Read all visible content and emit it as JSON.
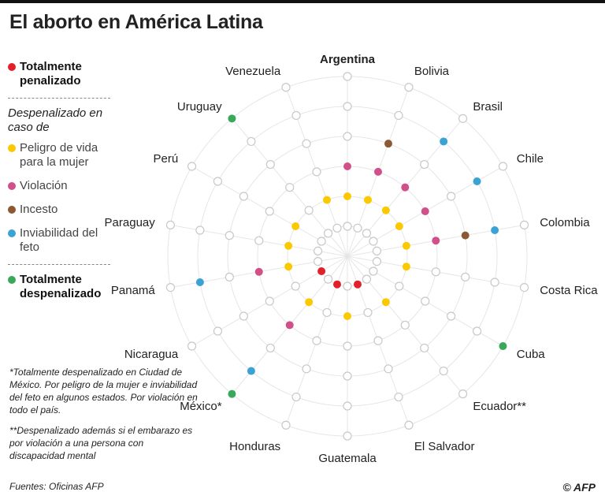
{
  "title": "El aborto en América Latina",
  "legend": {
    "penalizado": "Totalmente penalizado",
    "subtitle": "Despenalizado en caso de",
    "peligro": "Peligro de vida para la mujer",
    "violacion": "Violación",
    "incesto": "Incesto",
    "inviabilidad": "Inviabilidad del feto",
    "despenalizado": "Totalmente despenalizado"
  },
  "notes": [
    "*Totalmente despenalizado en Ciudad de México. Por peligro de la mujer e inviabilidad del feto en algunos estados. Por violación en todo el país.",
    "**Despenalizado además si el embarazo es por violación a una persona con discapacidad mental"
  ],
  "source": "Fuentes: Oficinas AFP",
  "logo": "© AFP",
  "colors": {
    "penalizado": "#e3202a",
    "peligro": "#fcc800",
    "violacion": "#d1508a",
    "incesto": "#8b5a35",
    "inviabilidad": "#3ba3d3",
    "despenalizado": "#3aa85a",
    "empty": "#c8c8c8"
  },
  "chart_data": {
    "type": "radial",
    "rings": [
      "penalizado",
      "peligro",
      "violacion",
      "incesto",
      "inviabilidad",
      "despenalizado"
    ],
    "countries": [
      {
        "name": "Argentina",
        "status": [
          "peligro",
          "violacion"
        ]
      },
      {
        "name": "Bolivia",
        "status": [
          "peligro",
          "violacion",
          "incesto"
        ]
      },
      {
        "name": "Brasil",
        "status": [
          "peligro",
          "violacion",
          "inviabilidad"
        ]
      },
      {
        "name": "Chile",
        "status": [
          "peligro",
          "violacion",
          "inviabilidad"
        ]
      },
      {
        "name": "Colombia",
        "status": [
          "peligro",
          "violacion",
          "incesto",
          "inviabilidad"
        ]
      },
      {
        "name": "Costa Rica",
        "status": [
          "peligro"
        ]
      },
      {
        "name": "Cuba",
        "status": [
          "despenalizado"
        ]
      },
      {
        "name": "Ecuador**",
        "status": [
          "peligro"
        ]
      },
      {
        "name": "El Salvador",
        "status": [
          "penalizado"
        ]
      },
      {
        "name": "Guatemala",
        "status": [
          "peligro"
        ]
      },
      {
        "name": "Honduras",
        "status": [
          "penalizado"
        ]
      },
      {
        "name": "México*",
        "status": [
          "peligro",
          "violacion",
          "inviabilidad",
          "despenalizado"
        ]
      },
      {
        "name": "Nicaragua",
        "status": [
          "penalizado"
        ]
      },
      {
        "name": "Panamá",
        "status": [
          "peligro",
          "violacion",
          "inviabilidad"
        ]
      },
      {
        "name": "Paraguay",
        "status": [
          "peligro"
        ]
      },
      {
        "name": "Perú",
        "status": [
          "peligro"
        ]
      },
      {
        "name": "Uruguay",
        "status": [
          "despenalizado"
        ]
      },
      {
        "name": "Venezuela",
        "status": [
          "peligro"
        ]
      }
    ]
  }
}
